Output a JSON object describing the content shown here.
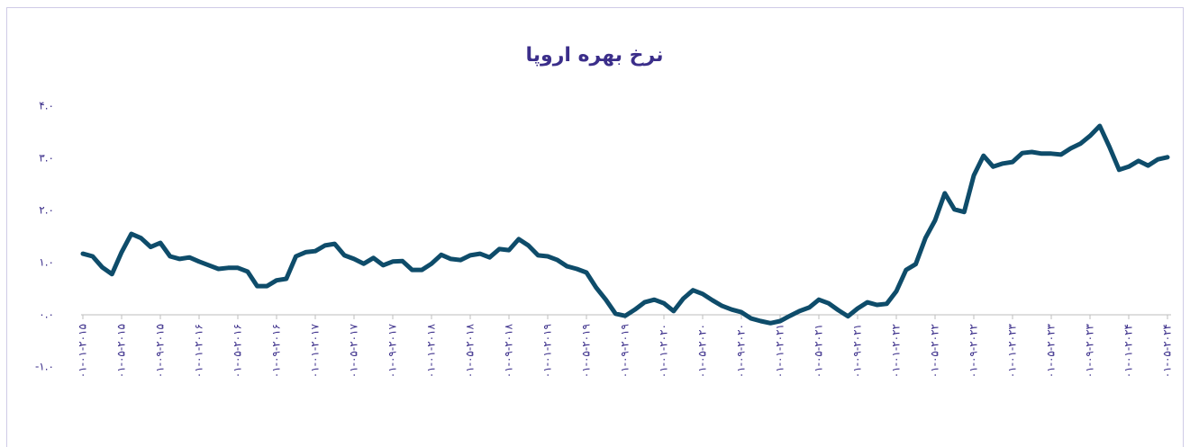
{
  "chart_data": {
    "type": "line",
    "title": "نرخ بهره اروپا",
    "categories": [
      "۰۱-۰۱-۲۰۱۵",
      null,
      null,
      null,
      "۰۱-۰۵-۲۰۱۵",
      null,
      null,
      null,
      "۰۱-۰۹-۲۰۱۵",
      null,
      null,
      null,
      "۰۱-۰۱-۲۰۱۶",
      null,
      null,
      null,
      "۰۱-۰۵-۲۰۱۶",
      null,
      null,
      null,
      "۰۱-۰۹-۲۰۱۶",
      null,
      null,
      null,
      "۰۱-۰۱-۲۰۱۷",
      null,
      null,
      null,
      "۰۱-۰۵-۲۰۱۷",
      null,
      null,
      null,
      "۰۱-۰۹-۲۰۱۷",
      null,
      null,
      null,
      "۰۱-۰۱-۲۰۱۸",
      null,
      null,
      null,
      "۰۱-۰۵-۲۰۱۸",
      null,
      null,
      null,
      "۰۱-۰۹-۲۰۱۸",
      null,
      null,
      null,
      "۰۱-۰۱-۲۰۱۹",
      null,
      null,
      null,
      "۰۱-۰۵-۲۰۱۹",
      null,
      null,
      null,
      "۰۱-۰۹-۲۰۱۹",
      null,
      null,
      null,
      "۰۱-۰۱-۲۰۲۰",
      null,
      null,
      null,
      "۰۱-۰۵-۲۰۲۰",
      null,
      null,
      null,
      "۰۱-۰۹-۲۰۲۰",
      null,
      null,
      null,
      "۰۱-۰۱-۲۰۲۱",
      null,
      null,
      null,
      "۰۱-۰۵-۲۰۲۱",
      null,
      null,
      null,
      "۰۱-۰۹-۲۰۲۱",
      null,
      null,
      null,
      "۰۱-۰۱-۲۰۲۲",
      null,
      null,
      null,
      "۰۱-۰۵-۲۰۲۲",
      null,
      null,
      null,
      "۰۱-۰۹-۲۰۲۲",
      null,
      null,
      null,
      "۰۱-۰۱-۲۰۲۳",
      null,
      null,
      null,
      "۰۱-۰۵-۲۰۲۳",
      null,
      null,
      null,
      "۰۱-۰۹-۲۰۲۳",
      null,
      null,
      null,
      "۰۱-۰۱-۲۰۲۴",
      null,
      null,
      null,
      "۰۱-۰۵-۲۰۲۴"
    ],
    "values": [
      1.17,
      1.12,
      0.91,
      0.78,
      1.2,
      1.55,
      1.47,
      1.3,
      1.38,
      1.12,
      1.07,
      1.1,
      1.02,
      0.95,
      0.88,
      0.9,
      0.9,
      0.83,
      0.55,
      0.55,
      0.66,
      0.69,
      1.12,
      1.2,
      1.22,
      1.33,
      1.36,
      1.14,
      1.07,
      0.98,
      1.09,
      0.95,
      1.02,
      1.03,
      0.86,
      0.86,
      0.98,
      1.15,
      1.07,
      1.05,
      1.14,
      1.17,
      1.1,
      1.26,
      1.24,
      1.45,
      1.33,
      1.14,
      1.12,
      1.05,
      0.93,
      0.88,
      0.81,
      0.52,
      0.29,
      0.02,
      -0.02,
      0.1,
      0.24,
      0.29,
      0.22,
      0.07,
      0.31,
      0.47,
      0.4,
      0.28,
      0.17,
      0.1,
      0.05,
      -0.07,
      -0.12,
      -0.16,
      -0.12,
      -0.02,
      0.07,
      0.14,
      0.29,
      0.22,
      0.09,
      -0.03,
      0.12,
      0.24,
      0.19,
      0.21,
      0.45,
      0.86,
      0.97,
      1.47,
      1.81,
      2.33,
      2.02,
      1.97,
      2.67,
      3.05,
      2.84,
      2.9,
      2.93,
      3.1,
      3.12,
      3.09,
      3.09,
      3.07,
      3.19,
      3.28,
      3.43,
      3.62,
      3.22,
      2.78,
      2.84,
      2.95,
      2.86,
      2.98,
      3.02
    ],
    "color": "#0e4c6a",
    "ylim": [
      -1,
      4
    ],
    "yticks": [
      {
        "value": -1,
        "label": "-۱.۰"
      },
      {
        "value": 0,
        "label": "۰.۰"
      },
      {
        "value": 1,
        "label": "۱.۰"
      },
      {
        "value": 2,
        "label": "۲.۰"
      },
      {
        "value": 3,
        "label": "۳.۰"
      },
      {
        "value": 4,
        "label": "۴.۰"
      }
    ],
    "grid": false
  }
}
